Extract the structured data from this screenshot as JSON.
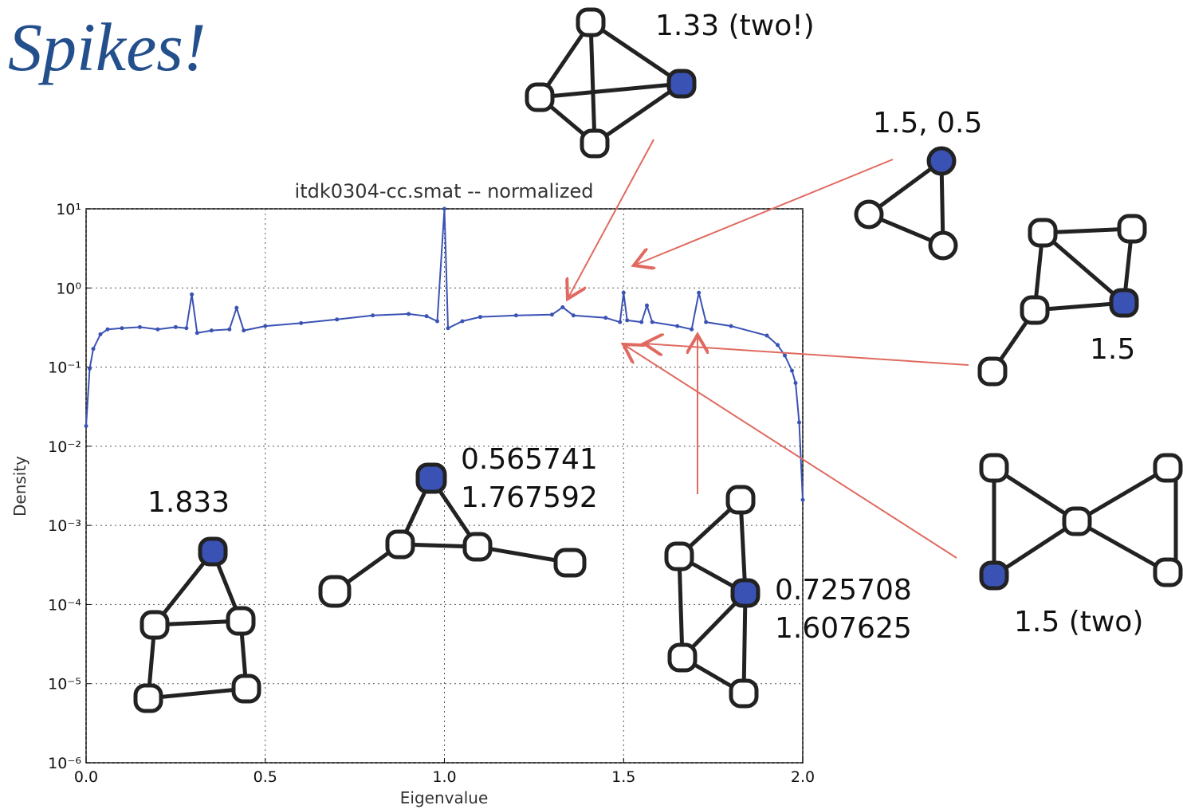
{
  "slide": {
    "title": "Spikes!"
  },
  "annotations": [
    "1.33 (two!)",
    "1.5, 0.5",
    "1.5",
    "1.5 (two)",
    "1.833",
    "0.565741",
    "1.767592",
    "0.725708",
    "1.607625"
  ],
  "chart_data": {
    "type": "line",
    "title": "itdk0304-cc.smat -- normalized",
    "x_label": "Eigenvalue",
    "y_label": "Density",
    "x": [
      0.0,
      0.01,
      0.02,
      0.04,
      0.06,
      0.1,
      0.15,
      0.2,
      0.25,
      0.28,
      0.295,
      0.31,
      0.35,
      0.4,
      0.42,
      0.44,
      0.5,
      0.6,
      0.7,
      0.8,
      0.9,
      0.95,
      0.98,
      1.0,
      1.01,
      1.05,
      1.1,
      1.2,
      1.3,
      1.33,
      1.36,
      1.45,
      1.49,
      1.5,
      1.51,
      1.55,
      1.565,
      1.58,
      1.65,
      1.69,
      1.71,
      1.73,
      1.8,
      1.9,
      1.93,
      1.95,
      1.97,
      1.98,
      1.99,
      2.0
    ],
    "series": [
      {
        "color": "#3a52b4",
        "values": [
          0.018,
          0.096,
          0.17,
          0.26,
          0.3,
          0.31,
          0.32,
          0.3,
          0.32,
          0.31,
          0.83,
          0.27,
          0.29,
          0.3,
          0.56,
          0.29,
          0.33,
          0.36,
          0.4,
          0.45,
          0.47,
          0.44,
          0.38,
          10,
          0.31,
          0.38,
          0.43,
          0.45,
          0.46,
          0.57,
          0.45,
          0.42,
          0.37,
          0.87,
          0.39,
          0.37,
          0.6,
          0.37,
          0.33,
          0.3,
          0.87,
          0.37,
          0.33,
          0.25,
          0.19,
          0.14,
          0.09,
          0.063,
          0.02,
          0.0021
        ]
      }
    ],
    "xlim": [
      0,
      2
    ],
    "xticks": [
      {
        "value": 0,
        "label": "0.0"
      },
      0.5,
      {
        "value": 1,
        "label": "1.0"
      },
      1.5,
      {
        "value": 2,
        "label": "2.0"
      }
    ],
    "ylim": [
      1e-06,
      10
    ],
    "log_y": true,
    "yticks": [
      {
        "value": 1e-06,
        "label": "10⁻⁶"
      },
      {
        "value": 1e-05,
        "label": "10⁻⁵"
      },
      {
        "value": 0.0001,
        "label": "10⁻⁴"
      },
      {
        "value": 0.001,
        "label": "10⁻³"
      },
      {
        "value": 0.01,
        "label": "10⁻²"
      },
      {
        "value": 0.1,
        "label": "10⁻¹"
      },
      {
        "value": 1,
        "label": "10⁰"
      },
      {
        "value": 10,
        "label": "10¹"
      }
    ],
    "grid": true
  }
}
